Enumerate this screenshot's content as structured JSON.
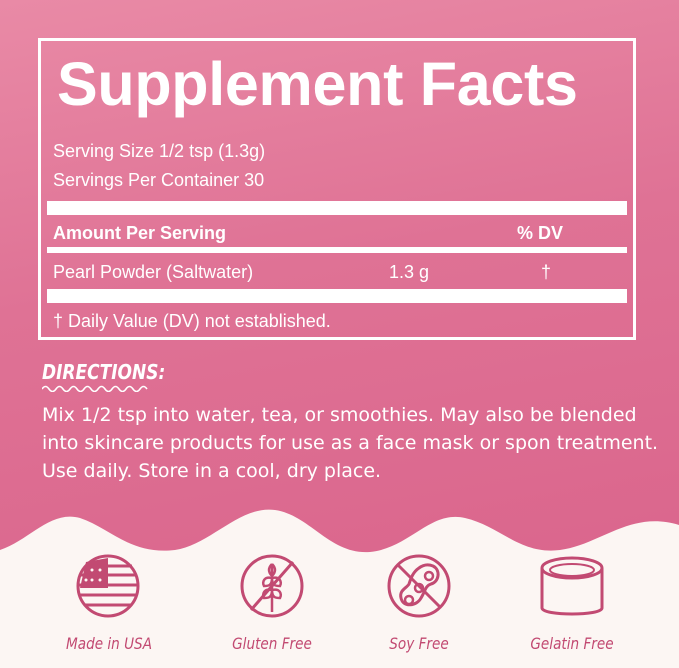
{
  "facts": {
    "title": "Supplement Facts",
    "serving_size": "Serving Size 1/2 tsp (1.3g)",
    "servings_per_container": "Servings Per Container 30",
    "amount_header": "Amount Per Serving",
    "dv_header": "% DV",
    "ingredient": {
      "name": "Pearl Powder (Saltwater)",
      "amount": "1.3 g",
      "dv": "†"
    },
    "footnote": "† Daily Value (DV) not established."
  },
  "directions": {
    "heading": "DIRECTIONS:",
    "text": "Mix 1/2 tsp into water, tea, or smoothies. May also be blended into skincare products for use as a face mask or spon treatment. Use daily. Store in a cool, dry place."
  },
  "badges": [
    {
      "label": "Made in USA",
      "icon": "usa-flag-icon"
    },
    {
      "label": "Gluten Free",
      "icon": "gluten-free-icon"
    },
    {
      "label": "Soy Free",
      "icon": "soy-free-icon"
    },
    {
      "label": "Gelatin Free",
      "icon": "gelatin-free-icon"
    }
  ],
  "colors": {
    "background": "#df7295",
    "accent": "#c24a72",
    "cream": "#fcf6f3"
  }
}
